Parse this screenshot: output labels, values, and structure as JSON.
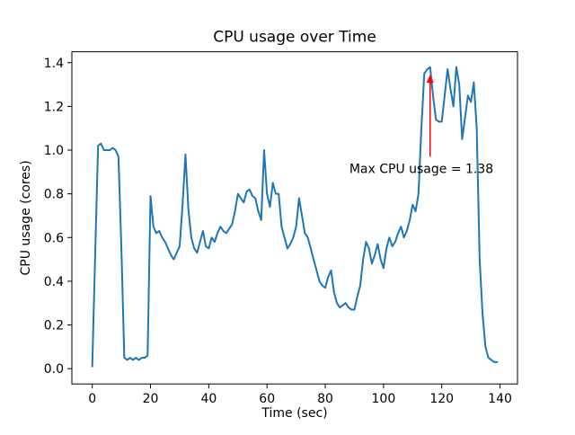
{
  "chart_data": {
    "type": "line",
    "title": "CPU usage over Time",
    "xlabel": "Time (sec)",
    "ylabel": "CPU usage (cores)",
    "xlim": [
      -7,
      146
    ],
    "ylim": [
      -0.07,
      1.45
    ],
    "xticks": [
      0,
      20,
      40,
      60,
      80,
      100,
      120,
      140
    ],
    "yticks": [
      0.0,
      0.2,
      0.4,
      0.6,
      0.8,
      1.0,
      1.2,
      1.4
    ],
    "grid": false,
    "legend": "none",
    "line_color": "#1f77b4",
    "x": [
      0,
      1,
      2,
      3,
      4,
      5,
      6,
      7,
      8,
      9,
      10,
      11,
      12,
      13,
      14,
      15,
      16,
      17,
      18,
      19,
      20,
      21,
      22,
      23,
      24,
      25,
      26,
      27,
      28,
      29,
      30,
      31,
      32,
      33,
      34,
      35,
      36,
      37,
      38,
      39,
      40,
      41,
      42,
      43,
      44,
      45,
      46,
      47,
      48,
      49,
      50,
      51,
      52,
      53,
      54,
      55,
      56,
      57,
      58,
      59,
      60,
      61,
      62,
      63,
      64,
      65,
      66,
      67,
      68,
      69,
      70,
      71,
      72,
      73,
      74,
      75,
      76,
      77,
      78,
      79,
      80,
      81,
      82,
      83,
      84,
      85,
      86,
      87,
      88,
      89,
      90,
      91,
      92,
      93,
      94,
      95,
      96,
      97,
      98,
      99,
      100,
      101,
      102,
      103,
      104,
      105,
      106,
      107,
      108,
      109,
      110,
      111,
      112,
      113,
      114,
      115,
      116,
      117,
      118,
      119,
      120,
      121,
      122,
      123,
      124,
      125,
      126,
      127,
      128,
      129,
      130,
      131,
      132,
      133,
      134,
      135,
      136,
      137,
      138,
      139
    ],
    "y": [
      0.01,
      0.52,
      1.02,
      1.03,
      1.0,
      1.0,
      1.0,
      1.01,
      1.0,
      0.97,
      0.55,
      0.05,
      0.04,
      0.05,
      0.04,
      0.05,
      0.04,
      0.05,
      0.05,
      0.06,
      0.79,
      0.65,
      0.62,
      0.63,
      0.6,
      0.58,
      0.55,
      0.52,
      0.5,
      0.53,
      0.56,
      0.75,
      0.98,
      0.73,
      0.6,
      0.55,
      0.53,
      0.58,
      0.63,
      0.56,
      0.55,
      0.6,
      0.58,
      0.62,
      0.65,
      0.63,
      0.62,
      0.64,
      0.66,
      0.72,
      0.8,
      0.78,
      0.76,
      0.81,
      0.82,
      0.79,
      0.78,
      0.72,
      0.68,
      1.0,
      0.8,
      0.74,
      0.85,
      0.8,
      0.8,
      0.65,
      0.6,
      0.55,
      0.57,
      0.6,
      0.65,
      0.78,
      0.7,
      0.62,
      0.6,
      0.55,
      0.5,
      0.45,
      0.4,
      0.38,
      0.37,
      0.42,
      0.45,
      0.35,
      0.3,
      0.28,
      0.29,
      0.3,
      0.28,
      0.27,
      0.27,
      0.33,
      0.38,
      0.5,
      0.58,
      0.55,
      0.48,
      0.52,
      0.57,
      0.5,
      0.46,
      0.55,
      0.6,
      0.56,
      0.58,
      0.62,
      0.65,
      0.6,
      0.63,
      0.68,
      0.75,
      0.72,
      0.8,
      1.1,
      1.35,
      1.37,
      1.38,
      1.25,
      1.14,
      1.13,
      1.13,
      1.25,
      1.37,
      1.28,
      1.2,
      1.38,
      1.3,
      1.05,
      1.15,
      1.25,
      1.22,
      1.31,
      1.1,
      0.5,
      0.25,
      0.1,
      0.05,
      0.04,
      0.03,
      0.03
    ],
    "annotation": {
      "text": "Max CPU usage = 1.38",
      "color": "#ff0000",
      "text_x": 113,
      "text_y": 0.895,
      "arrow_x": 116,
      "arrow_tail_y": 0.97,
      "arrow_tip_y": 1.345
    },
    "max_value": 1.38
  }
}
